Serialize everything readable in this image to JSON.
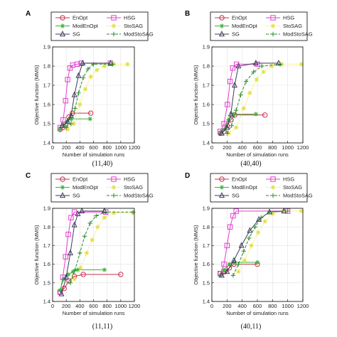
{
  "chart_data": [
    {
      "type": "line",
      "panel": "A",
      "caption": "(11,40)",
      "xlabel": "Number of simulation runs",
      "ylabel": "Objective function (MMS)",
      "xlim": [
        0,
        1200
      ],
      "ylim": [
        1.4,
        1.9
      ],
      "xticks": [
        0,
        200,
        400,
        600,
        800,
        1000,
        1200
      ],
      "yticks": [
        1.4,
        1.5,
        1.6,
        1.7,
        1.8,
        1.9
      ],
      "legend_position": "top",
      "series": [
        {
          "name": "EnOpt",
          "color": "#c8324f",
          "dash": "solid",
          "marker": "circle",
          "x": [
            110,
            150,
            195,
            240,
            290,
            560
          ],
          "y": [
            1.47,
            1.48,
            1.5,
            1.535,
            1.555,
            1.555
          ]
        },
        {
          "name": "HSG",
          "color": "#e23fd0",
          "dash": "solid",
          "marker": "square",
          "x": [
            110,
            155,
            190,
            220,
            255,
            295,
            360,
            420,
            850
          ],
          "y": [
            1.48,
            1.52,
            1.62,
            1.73,
            1.79,
            1.805,
            1.81,
            1.815,
            1.815
          ]
        },
        {
          "name": "ModEnOpt",
          "color": "#39b339",
          "dash": "solid",
          "marker": "star",
          "x": [
            110,
            165,
            210,
            260,
            550
          ],
          "y": [
            1.47,
            1.49,
            1.51,
            1.525,
            1.525
          ]
        },
        {
          "name": "StoSAG",
          "color": "#e3df3a",
          "dash": "dotted",
          "marker": "star",
          "x": [
            220,
            310,
            400,
            480,
            560,
            650,
            760,
            900,
            1100
          ],
          "y": [
            1.47,
            1.5,
            1.6,
            1.68,
            1.745,
            1.78,
            1.8,
            1.81,
            1.81
          ]
        },
        {
          "name": "SG",
          "color": "#3a3a5c",
          "dash": "solid",
          "marker": "triangle",
          "x": [
            140,
            220,
            270,
            320,
            380,
            440,
            850
          ],
          "y": [
            1.49,
            1.51,
            1.54,
            1.65,
            1.75,
            1.815,
            1.815
          ]
        },
        {
          "name": "ModStoSAG",
          "color": "#2a8a2a",
          "dash": "dashed",
          "marker": "plus",
          "x": [
            200,
            270,
            330,
            380,
            450,
            520,
            600,
            880
          ],
          "y": [
            1.48,
            1.5,
            1.58,
            1.66,
            1.74,
            1.785,
            1.81,
            1.81
          ]
        }
      ]
    },
    {
      "type": "line",
      "panel": "B",
      "caption": "(40,40)",
      "xlabel": "Number of simulation runs",
      "ylabel": "Objective function (MMS)",
      "xlim": [
        0,
        1200
      ],
      "ylim": [
        1.4,
        1.9
      ],
      "xticks": [
        0,
        200,
        400,
        600,
        800,
        1000,
        1200
      ],
      "yticks": [
        1.4,
        1.5,
        1.6,
        1.7,
        1.8,
        1.9
      ],
      "legend_position": "top",
      "series": [
        {
          "name": "EnOpt",
          "color": "#c8324f",
          "dash": "solid",
          "marker": "circle",
          "x": [
            110,
            160,
            200,
            250,
            300,
            700
          ],
          "y": [
            1.45,
            1.46,
            1.49,
            1.52,
            1.545,
            1.545
          ]
        },
        {
          "name": "HSG",
          "color": "#e23fd0",
          "dash": "solid",
          "marker": "square",
          "x": [
            110,
            160,
            205,
            240,
            275,
            325,
            600
          ],
          "y": [
            1.46,
            1.5,
            1.6,
            1.72,
            1.79,
            1.81,
            1.81
          ]
        },
        {
          "name": "ModEnOpt",
          "color": "#39b339",
          "dash": "solid",
          "marker": "star",
          "x": [
            110,
            160,
            220,
            280,
            580
          ],
          "y": [
            1.45,
            1.47,
            1.52,
            1.55,
            1.55
          ]
        },
        {
          "name": "StoSAG",
          "color": "#e3df3a",
          "dash": "dotted",
          "marker": "star",
          "x": [
            220,
            320,
            420,
            500,
            590,
            680,
            790,
            920,
            1180
          ],
          "y": [
            1.45,
            1.48,
            1.58,
            1.66,
            1.73,
            1.77,
            1.8,
            1.81,
            1.81
          ]
        },
        {
          "name": "SG",
          "color": "#3a3a5c",
          "dash": "solid",
          "marker": "triangle",
          "x": [
            130,
            200,
            250,
            300,
            350,
            580,
            880
          ],
          "y": [
            1.45,
            1.48,
            1.55,
            1.7,
            1.8,
            1.815,
            1.815
          ]
        },
        {
          "name": "ModStoSAG",
          "color": "#2a8a2a",
          "dash": "dashed",
          "marker": "plus",
          "x": [
            200,
            260,
            320,
            380,
            450,
            550,
            660,
            900
          ],
          "y": [
            1.45,
            1.49,
            1.57,
            1.65,
            1.72,
            1.77,
            1.8,
            1.81
          ]
        }
      ]
    },
    {
      "type": "line",
      "panel": "C",
      "caption": "(11,11)",
      "xlabel": "Number of simulation runs",
      "ylabel": "Objective function (MMS)",
      "xlim": [
        0,
        1200
      ],
      "ylim": [
        1.4,
        1.9
      ],
      "xticks": [
        0,
        200,
        400,
        600,
        800,
        1000,
        1200
      ],
      "yticks": [
        1.4,
        1.5,
        1.6,
        1.7,
        1.8,
        1.9
      ],
      "legend_position": "top",
      "series": [
        {
          "name": "EnOpt",
          "color": "#c8324f",
          "dash": "solid",
          "marker": "circle",
          "x": [
            110,
            170,
            240,
            320,
            450,
            1000
          ],
          "y": [
            1.45,
            1.47,
            1.51,
            1.535,
            1.545,
            1.545
          ]
        },
        {
          "name": "HSG",
          "color": "#e23fd0",
          "dash": "solid",
          "marker": "square",
          "x": [
            110,
            150,
            190,
            230,
            270,
            320,
            780
          ],
          "y": [
            1.45,
            1.53,
            1.64,
            1.76,
            1.85,
            1.88,
            1.88
          ]
        },
        {
          "name": "ModEnOpt",
          "color": "#39b339",
          "dash": "solid",
          "marker": "star",
          "x": [
            110,
            160,
            230,
            300,
            370,
            760
          ],
          "y": [
            1.46,
            1.52,
            1.545,
            1.56,
            1.57,
            1.57
          ]
        },
        {
          "name": "StoSAG",
          "color": "#e3df3a",
          "dash": "dotted",
          "marker": "star",
          "x": [
            320,
            410,
            500,
            580,
            660,
            760,
            900,
            1180
          ],
          "y": [
            1.52,
            1.58,
            1.66,
            1.73,
            1.8,
            1.85,
            1.875,
            1.875
          ]
        },
        {
          "name": "SG",
          "color": "#3a3a5c",
          "dash": "solid",
          "marker": "triangle",
          "x": [
            130,
            200,
            260,
            320,
            370,
            430,
            760
          ],
          "y": [
            1.44,
            1.53,
            1.66,
            1.81,
            1.87,
            1.885,
            1.885
          ]
        },
        {
          "name": "ModStoSAG",
          "color": "#2a8a2a",
          "dash": "dashed",
          "marker": "plus",
          "x": [
            260,
            330,
            400,
            470,
            550,
            640,
            780,
            1180
          ],
          "y": [
            1.5,
            1.57,
            1.66,
            1.75,
            1.82,
            1.86,
            1.88,
            1.88
          ]
        }
      ]
    },
    {
      "type": "line",
      "panel": "D",
      "caption": "(40,11)",
      "xlabel": "Number of simulation runs",
      "ylabel": "Objective function (MMS)",
      "xlim": [
        0,
        1200
      ],
      "ylim": [
        1.4,
        1.9
      ],
      "xticks": [
        0,
        200,
        400,
        600,
        800,
        1000,
        1200
      ],
      "yticks": [
        1.4,
        1.5,
        1.6,
        1.7,
        1.8,
        1.9
      ],
      "legend_position": "top",
      "series": [
        {
          "name": "EnOpt",
          "color": "#c8324f",
          "dash": "solid",
          "marker": "circle",
          "x": [
            110,
            170,
            230,
            290,
            600
          ],
          "y": [
            1.55,
            1.56,
            1.58,
            1.6,
            1.6
          ]
        },
        {
          "name": "HSG",
          "color": "#e23fd0",
          "dash": "solid",
          "marker": "square",
          "x": [
            110,
            160,
            200,
            240,
            280,
            320,
            1000
          ],
          "y": [
            1.55,
            1.6,
            1.7,
            1.8,
            1.86,
            1.885,
            1.885
          ]
        },
        {
          "name": "ModEnOpt",
          "color": "#39b339",
          "dash": "solid",
          "marker": "star",
          "x": [
            110,
            160,
            230,
            300,
            600
          ],
          "y": [
            1.54,
            1.57,
            1.6,
            1.61,
            1.61
          ]
        },
        {
          "name": "StoSAG",
          "color": "#e3df3a",
          "dash": "dotted",
          "marker": "star",
          "x": [
            350,
            430,
            520,
            610,
            700,
            800,
            950,
            1180
          ],
          "y": [
            1.56,
            1.62,
            1.7,
            1.77,
            1.83,
            1.87,
            1.885,
            1.885
          ]
        },
        {
          "name": "SG",
          "color": "#3a3a5c",
          "dash": "solid",
          "marker": "triangle",
          "x": [
            130,
            200,
            290,
            390,
            500,
            620,
            760,
            950
          ],
          "y": [
            1.54,
            1.56,
            1.62,
            1.7,
            1.78,
            1.84,
            1.88,
            1.885
          ]
        },
        {
          "name": "ModStoSAG",
          "color": "#2a8a2a",
          "dash": "dashed",
          "marker": "plus",
          "x": [
            280,
            350,
            420,
            490,
            570,
            650,
            760,
            1000
          ],
          "y": [
            1.54,
            1.6,
            1.67,
            1.74,
            1.8,
            1.85,
            1.88,
            1.885
          ]
        }
      ]
    }
  ]
}
